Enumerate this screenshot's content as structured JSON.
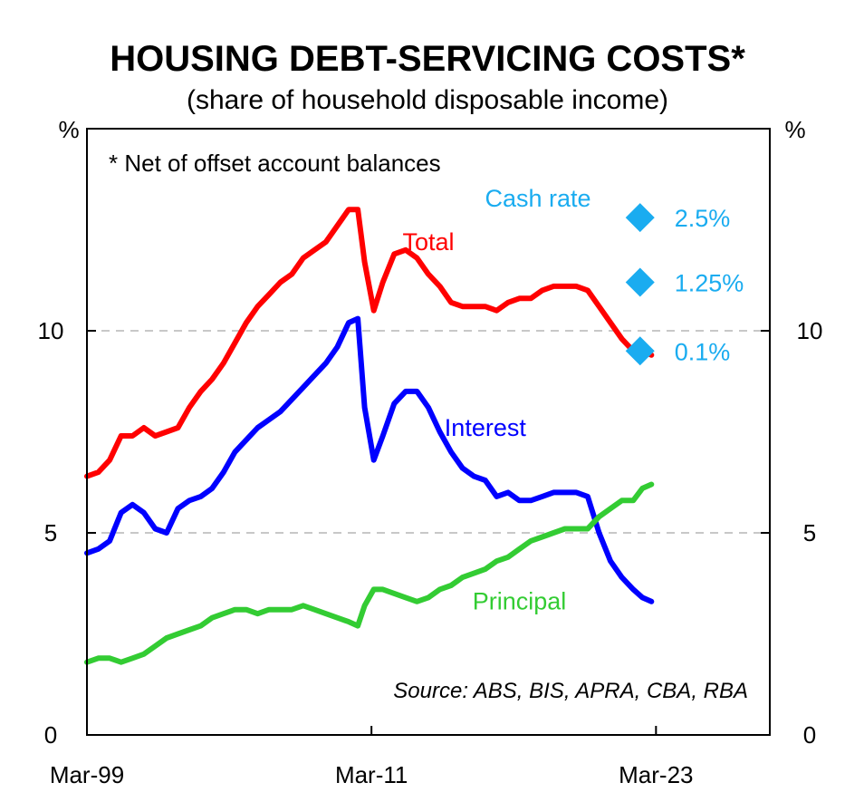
{
  "chart_data": {
    "type": "line",
    "title": "HOUSING DEBT-SERVICING COSTS*",
    "subtitle": "(share of household disposable income)",
    "ylabel_left": "%",
    "ylabel_right": "%",
    "ylim": [
      0,
      15
    ],
    "yticks": [
      0,
      5,
      10
    ],
    "xlim": [
      1999.0,
      2029.0
    ],
    "xticks": [
      {
        "label": "Mar-99",
        "value": 1999.0
      },
      {
        "label": "Mar-11",
        "value": 2011.5
      },
      {
        "label": "Mar-23",
        "value": 2024.0
      }
    ],
    "grid": "dashed at 5 and 10",
    "footnote": "*  Net of offset account balances",
    "source": "Source: ABS, BIS, APRA, CBA, RBA",
    "series": [
      {
        "name": "Total",
        "color": "#ff0000",
        "label_at": [
          2014.0,
          12.0
        ],
        "points": [
          [
            1999.0,
            6.4
          ],
          [
            1999.5,
            6.5
          ],
          [
            2000.0,
            6.8
          ],
          [
            2000.5,
            7.4
          ],
          [
            2001.0,
            7.4
          ],
          [
            2001.5,
            7.6
          ],
          [
            2002.0,
            7.4
          ],
          [
            2002.5,
            7.5
          ],
          [
            2003.0,
            7.6
          ],
          [
            2003.5,
            8.1
          ],
          [
            2004.0,
            8.5
          ],
          [
            2004.5,
            8.8
          ],
          [
            2005.0,
            9.2
          ],
          [
            2005.5,
            9.7
          ],
          [
            2006.0,
            10.2
          ],
          [
            2006.5,
            10.6
          ],
          [
            2007.0,
            10.9
          ],
          [
            2007.5,
            11.2
          ],
          [
            2008.0,
            11.4
          ],
          [
            2008.5,
            11.8
          ],
          [
            2009.0,
            12.0
          ],
          [
            2009.5,
            12.2
          ],
          [
            2010.0,
            12.6
          ],
          [
            2010.5,
            13.0
          ],
          [
            2010.9,
            13.0
          ],
          [
            2011.2,
            11.7
          ],
          [
            2011.6,
            10.5
          ],
          [
            2012.0,
            11.2
          ],
          [
            2012.5,
            11.9
          ],
          [
            2013.0,
            12.0
          ],
          [
            2013.5,
            11.8
          ],
          [
            2014.0,
            11.4
          ],
          [
            2014.5,
            11.1
          ],
          [
            2015.0,
            10.7
          ],
          [
            2015.5,
            10.6
          ],
          [
            2016.0,
            10.6
          ],
          [
            2016.5,
            10.6
          ],
          [
            2017.0,
            10.5
          ],
          [
            2017.5,
            10.7
          ],
          [
            2018.0,
            10.8
          ],
          [
            2018.5,
            10.8
          ],
          [
            2019.0,
            11.0
          ],
          [
            2019.5,
            11.1
          ],
          [
            2020.0,
            11.1
          ],
          [
            2020.5,
            11.1
          ],
          [
            2021.0,
            11.0
          ],
          [
            2021.5,
            10.6
          ],
          [
            2022.0,
            10.2
          ],
          [
            2022.5,
            9.8
          ],
          [
            2023.0,
            9.5
          ],
          [
            2023.4,
            9.5
          ],
          [
            2023.8,
            9.4
          ]
        ]
      },
      {
        "name": "Interest",
        "color": "#0000ff",
        "label_at": [
          2016.5,
          7.4
        ],
        "points": [
          [
            1999.0,
            4.5
          ],
          [
            1999.5,
            4.6
          ],
          [
            2000.0,
            4.8
          ],
          [
            2000.5,
            5.5
          ],
          [
            2001.0,
            5.7
          ],
          [
            2001.5,
            5.5
          ],
          [
            2002.0,
            5.1
          ],
          [
            2002.5,
            5.0
          ],
          [
            2003.0,
            5.6
          ],
          [
            2003.5,
            5.8
          ],
          [
            2004.0,
            5.9
          ],
          [
            2004.5,
            6.1
          ],
          [
            2005.0,
            6.5
          ],
          [
            2005.5,
            7.0
          ],
          [
            2006.0,
            7.3
          ],
          [
            2006.5,
            7.6
          ],
          [
            2007.0,
            7.8
          ],
          [
            2007.5,
            8.0
          ],
          [
            2008.0,
            8.3
          ],
          [
            2008.5,
            8.6
          ],
          [
            2009.0,
            8.9
          ],
          [
            2009.5,
            9.2
          ],
          [
            2010.0,
            9.6
          ],
          [
            2010.5,
            10.2
          ],
          [
            2010.9,
            10.3
          ],
          [
            2011.2,
            8.1
          ],
          [
            2011.6,
            6.8
          ],
          [
            2012.0,
            7.4
          ],
          [
            2012.5,
            8.2
          ],
          [
            2013.0,
            8.5
          ],
          [
            2013.5,
            8.5
          ],
          [
            2014.0,
            8.1
          ],
          [
            2014.5,
            7.5
          ],
          [
            2015.0,
            7.0
          ],
          [
            2015.5,
            6.6
          ],
          [
            2016.0,
            6.4
          ],
          [
            2016.5,
            6.3
          ],
          [
            2017.0,
            5.9
          ],
          [
            2017.5,
            6.0
          ],
          [
            2018.0,
            5.8
          ],
          [
            2018.5,
            5.8
          ],
          [
            2019.0,
            5.9
          ],
          [
            2019.5,
            6.0
          ],
          [
            2020.0,
            6.0
          ],
          [
            2020.5,
            6.0
          ],
          [
            2021.0,
            5.9
          ],
          [
            2021.5,
            5.0
          ],
          [
            2022.0,
            4.3
          ],
          [
            2022.5,
            3.9
          ],
          [
            2023.0,
            3.6
          ],
          [
            2023.4,
            3.4
          ],
          [
            2023.8,
            3.3
          ]
        ]
      },
      {
        "name": "Principal",
        "color": "#33cc33",
        "label_at": [
          2018.0,
          3.1
        ],
        "points": [
          [
            1999.0,
            1.8
          ],
          [
            1999.5,
            1.9
          ],
          [
            2000.0,
            1.9
          ],
          [
            2000.5,
            1.8
          ],
          [
            2001.0,
            1.9
          ],
          [
            2001.5,
            2.0
          ],
          [
            2002.0,
            2.2
          ],
          [
            2002.5,
            2.4
          ],
          [
            2003.0,
            2.5
          ],
          [
            2003.5,
            2.6
          ],
          [
            2004.0,
            2.7
          ],
          [
            2004.5,
            2.9
          ],
          [
            2005.0,
            3.0
          ],
          [
            2005.5,
            3.1
          ],
          [
            2006.0,
            3.1
          ],
          [
            2006.5,
            3.0
          ],
          [
            2007.0,
            3.1
          ],
          [
            2007.5,
            3.1
          ],
          [
            2008.0,
            3.1
          ],
          [
            2008.5,
            3.2
          ],
          [
            2009.0,
            3.1
          ],
          [
            2009.5,
            3.0
          ],
          [
            2010.0,
            2.9
          ],
          [
            2010.5,
            2.8
          ],
          [
            2010.9,
            2.7
          ],
          [
            2011.2,
            3.2
          ],
          [
            2011.6,
            3.6
          ],
          [
            2012.0,
            3.6
          ],
          [
            2012.5,
            3.5
          ],
          [
            2013.0,
            3.4
          ],
          [
            2013.5,
            3.3
          ],
          [
            2014.0,
            3.4
          ],
          [
            2014.5,
            3.6
          ],
          [
            2015.0,
            3.7
          ],
          [
            2015.5,
            3.9
          ],
          [
            2016.0,
            4.0
          ],
          [
            2016.5,
            4.1
          ],
          [
            2017.0,
            4.3
          ],
          [
            2017.5,
            4.4
          ],
          [
            2018.0,
            4.6
          ],
          [
            2018.5,
            4.8
          ],
          [
            2019.0,
            4.9
          ],
          [
            2019.5,
            5.0
          ],
          [
            2020.0,
            5.1
          ],
          [
            2020.5,
            5.1
          ],
          [
            2021.0,
            5.1
          ],
          [
            2021.5,
            5.4
          ],
          [
            2022.0,
            5.6
          ],
          [
            2022.5,
            5.8
          ],
          [
            2023.0,
            5.8
          ],
          [
            2023.4,
            6.1
          ],
          [
            2023.8,
            6.2
          ]
        ]
      }
    ],
    "cash_rate": {
      "label": "Cash rate",
      "color": "#1aacf0",
      "marker_x": 2023.3,
      "points": [
        {
          "label": "2.5%",
          "y": 12.8
        },
        {
          "label": "1.25%",
          "y": 11.2
        },
        {
          "label": "0.1%",
          "y": 9.5
        }
      ]
    }
  }
}
